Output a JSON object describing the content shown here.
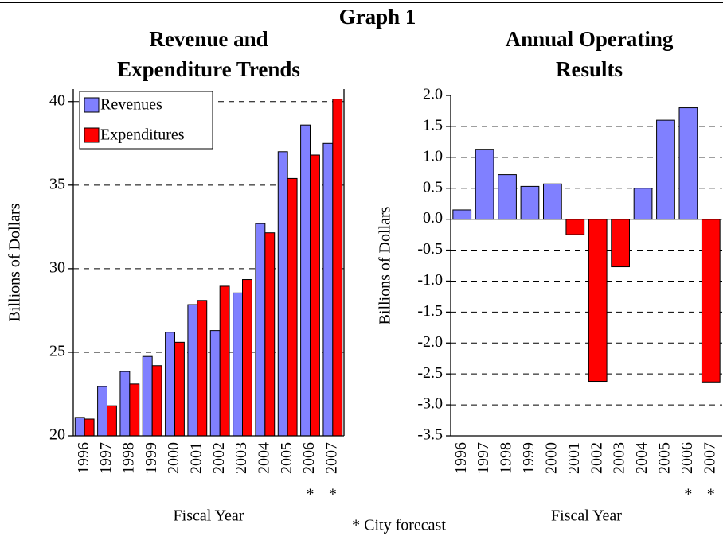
{
  "title": "Graph 1",
  "note": "* City forecast",
  "chart_data": [
    {
      "type": "grouped-bar",
      "title": [
        "Revenue and",
        "Expenditure Trends"
      ],
      "y_label": "Billions of Dollars",
      "x_label": "Fiscal Year",
      "categories": [
        "1996",
        "1997",
        "1998",
        "1999",
        "2000",
        "2001",
        "2002",
        "2003",
        "2004",
        "2005",
        "2006",
        "2007"
      ],
      "category_notes": [
        null,
        null,
        null,
        null,
        null,
        null,
        null,
        null,
        null,
        null,
        "*",
        "*"
      ],
      "series": [
        {
          "name": "Revenues",
          "color": "#8080ff",
          "values": [
            21.1,
            22.95,
            23.85,
            24.75,
            26.2,
            27.85,
            26.3,
            28.55,
            32.7,
            37.0,
            38.6,
            37.5
          ]
        },
        {
          "name": "Expenditures",
          "color": "#ff0000",
          "values": [
            21.0,
            21.8,
            23.1,
            24.2,
            25.6,
            28.1,
            28.95,
            29.35,
            32.15,
            35.4,
            36.8,
            40.15
          ]
        }
      ],
      "ylim": [
        20,
        40.75
      ],
      "yticks": [
        20,
        25,
        30,
        35,
        40
      ],
      "grid": true,
      "legend": "upper-left"
    },
    {
      "type": "signed-bar",
      "title": [
        "Annual Operating",
        "Results"
      ],
      "y_label": "Billions of Dollars",
      "x_label": "Fiscal Year",
      "categories": [
        "1996",
        "1997",
        "1998",
        "1999",
        "2000",
        "2001",
        "2002",
        "2003",
        "2004",
        "2005",
        "2006",
        "2007"
      ],
      "category_notes": [
        null,
        null,
        null,
        null,
        null,
        null,
        null,
        null,
        null,
        null,
        "*",
        "*"
      ],
      "values": [
        0.15,
        1.13,
        0.72,
        0.53,
        0.57,
        -0.25,
        -2.62,
        -0.77,
        0.5,
        1.6,
        1.8,
        -2.63
      ],
      "positive_color": "#8080ff",
      "negative_color": "#ff0000",
      "ylim": [
        -3.5,
        2.0
      ],
      "yticks": [
        -3.5,
        {
          "value": -3,
          "label": "-3.0"
        },
        -2.5,
        {
          "value": -2,
          "label": "-2.0"
        },
        -1.5,
        {
          "value": -1,
          "label": "-1.0"
        },
        -0.5,
        {
          "value": 0,
          "label": "0.0"
        },
        0.5,
        {
          "value": 1,
          "label": "1.0"
        },
        1.5,
        {
          "value": 2,
          "label": "2.0"
        }
      ],
      "grid": true
    }
  ]
}
